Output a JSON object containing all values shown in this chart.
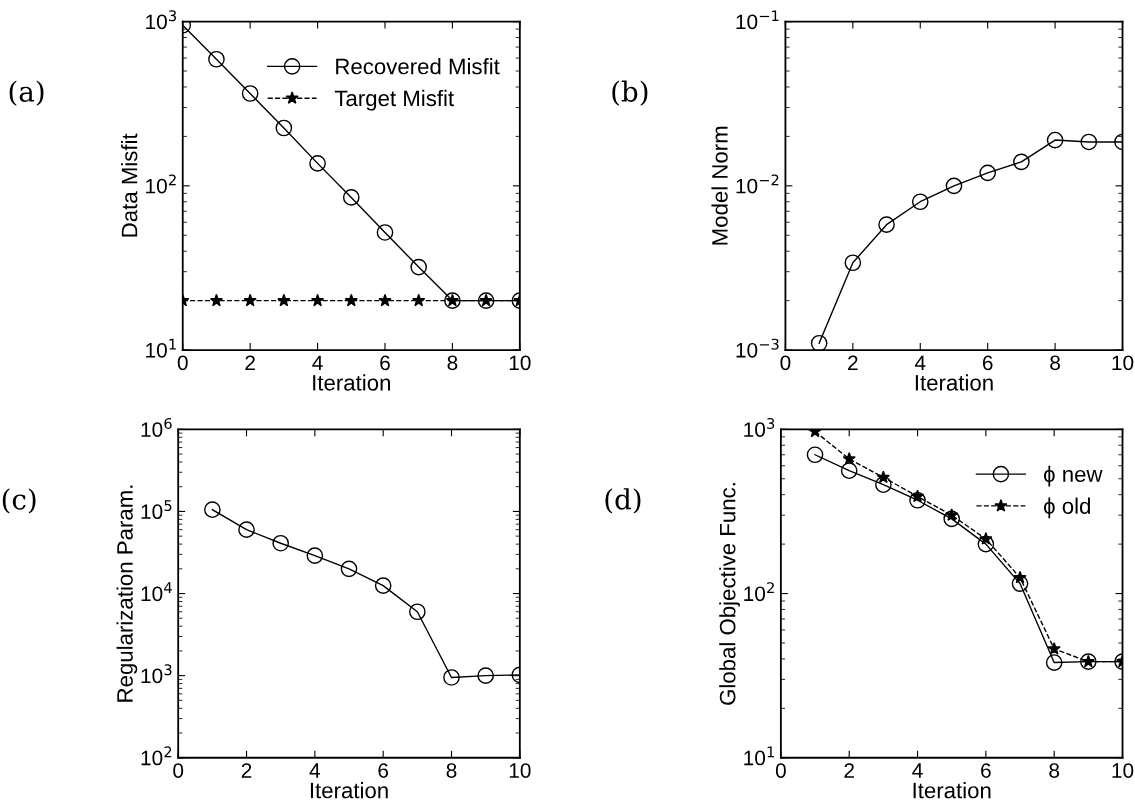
{
  "chart_data": [
    {
      "type": "line",
      "xlabel": "Iteration",
      "ylabel": "Data Misfit",
      "log": "y",
      "legend": "top right",
      "annotations": [
        "(a)"
      ],
      "xlim": [
        0,
        10
      ],
      "xticks": [
        0,
        2,
        4,
        6,
        8,
        10
      ],
      "ylim": [
        10,
        1000
      ],
      "yticks": [
        {
          "value": 10,
          "label": "10$^{1}$"
        },
        {
          "value": 100,
          "label": "10$^{2}$"
        },
        {
          "value": 1000,
          "label": "10$^{3}$"
        }
      ],
      "series": [
        {
          "name": "Recovered Misfit",
          "color": "#000000",
          "marker": "circle",
          "line_style": "solid",
          "x": [
            0,
            1,
            2,
            3,
            4,
            5,
            6,
            7,
            8,
            9,
            10
          ],
          "values": [
            950,
            590,
            365,
            225,
            137,
            85,
            52,
            32,
            20,
            20,
            20
          ]
        },
        {
          "name": "Target Misfit",
          "color": "#000000",
          "marker": "star",
          "line_style": "dashed",
          "x": [
            0,
            1,
            2,
            3,
            4,
            5,
            6,
            7,
            8,
            9,
            10
          ],
          "values": [
            20,
            20,
            20,
            20,
            20,
            20,
            20,
            20,
            20,
            20,
            20
          ]
        }
      ]
    },
    {
      "type": "line",
      "xlabel": "Iteration",
      "ylabel": "Model Norm",
      "log": "y",
      "annotations": [
        "(b)"
      ],
      "xlim": [
        0,
        10
      ],
      "xticks": [
        0,
        2,
        4,
        6,
        8,
        10
      ],
      "ylim": [
        0.001,
        0.1
      ],
      "yticks": [
        {
          "value": 0.001,
          "label": "10$^{−3}$"
        },
        {
          "value": 0.01,
          "label": "10$^{−2}$"
        },
        {
          "value": 0.1,
          "label": "10$^{−1}$"
        }
      ],
      "series": [
        {
          "color": "#000000",
          "marker": "circle",
          "line_style": "solid",
          "x": [
            1,
            2,
            3,
            4,
            5,
            6,
            7,
            8,
            9,
            10
          ],
          "values": [
            0.0011,
            0.0034,
            0.0058,
            0.008,
            0.01,
            0.012,
            0.014,
            0.019,
            0.0185,
            0.0185
          ]
        }
      ]
    },
    {
      "type": "line",
      "xlabel": "Iteration",
      "ylabel": "Regularization Param.",
      "log": "y",
      "annotations": [
        "(c)"
      ],
      "xlim": [
        0,
        10
      ],
      "xticks": [
        0,
        2,
        4,
        6,
        8,
        10
      ],
      "ylim": [
        100,
        1000000
      ],
      "yticks": [
        {
          "value": 100,
          "label": "10$^{2}$"
        },
        {
          "value": 1000,
          "label": "10$^{3}$"
        },
        {
          "value": 10000,
          "label": "10$^{4}$"
        },
        {
          "value": 100000,
          "label": "10$^{5}$"
        },
        {
          "value": 1000000,
          "label": "10$^{6}$"
        }
      ],
      "series": [
        {
          "color": "#000000",
          "marker": "circle",
          "line_style": "solid",
          "x": [
            1,
            2,
            3,
            4,
            5,
            6,
            7,
            8,
            9,
            10
          ],
          "values": [
            105000,
            60000,
            41000,
            29000,
            20000,
            12500,
            6000,
            950,
            1000,
            1020
          ]
        }
      ]
    },
    {
      "type": "line",
      "xlabel": "Iteration",
      "ylabel": "Global Objective Func.",
      "log": "y",
      "legend": "top right",
      "annotations": [
        "(d)"
      ],
      "xlim": [
        0,
        10
      ],
      "xticks": [
        0,
        2,
        4,
        6,
        8,
        10
      ],
      "ylim": [
        10,
        1000
      ],
      "yticks": [
        {
          "value": 10,
          "label": "10$^{1}$"
        },
        {
          "value": 100,
          "label": "10$^{2}$"
        },
        {
          "value": 1000,
          "label": "10$^{3}$"
        }
      ],
      "series": [
        {
          "name": "ϕ new",
          "color": "#000000",
          "marker": "circle",
          "line_style": "solid",
          "x": [
            1,
            2,
            3,
            4,
            5,
            6,
            7,
            8,
            9,
            10
          ],
          "values": [
            700,
            560,
            460,
            370,
            285,
            200,
            115,
            38,
            38.5,
            38.5
          ]
        },
        {
          "name": "ϕ old",
          "color": "#000000",
          "marker": "star",
          "line_style": "dashed",
          "x": [
            1,
            2,
            3,
            4,
            5,
            6,
            7,
            8,
            9,
            10
          ],
          "values": [
            970,
            660,
            510,
            390,
            300,
            215,
            125,
            46,
            38.5,
            38.5
          ]
        }
      ]
    }
  ]
}
